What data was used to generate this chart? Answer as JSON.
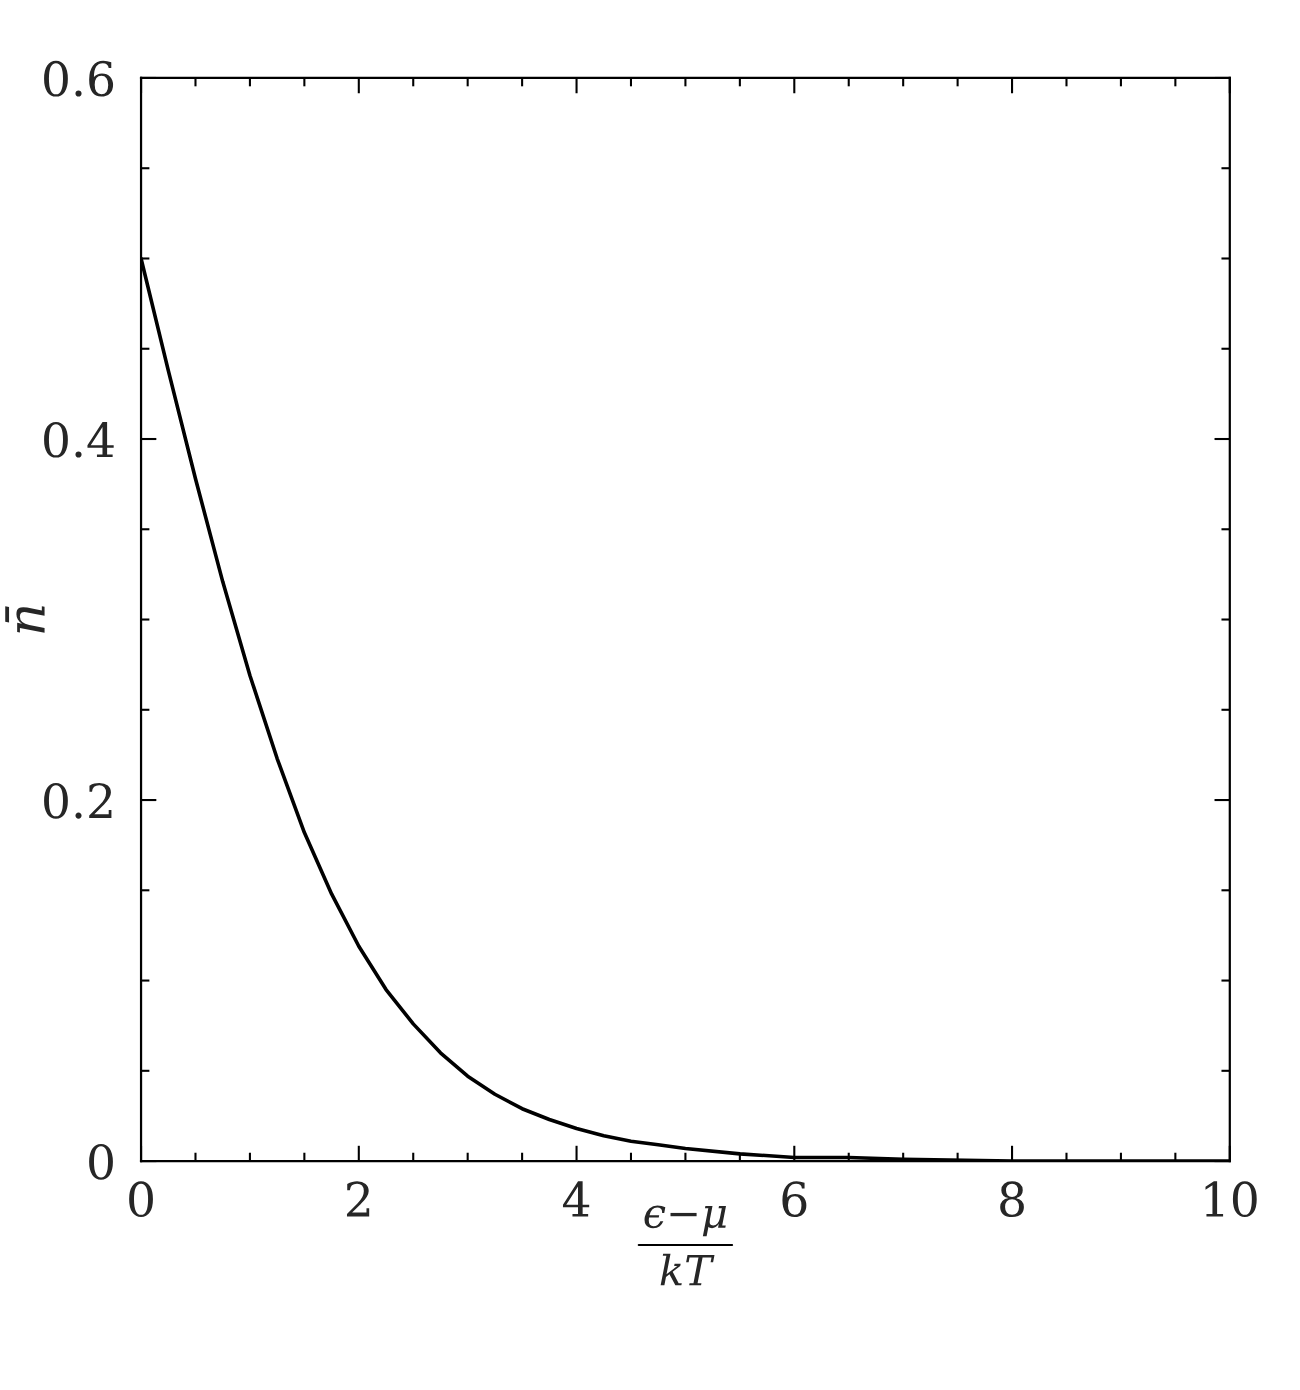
{
  "chart_data": {
    "type": "line",
    "xlabel": "ϵ−μ\nkT",
    "ylabel": "n̄",
    "x": [
      0,
      0.25,
      0.5,
      0.75,
      1,
      1.25,
      1.5,
      1.75,
      2,
      2.25,
      2.5,
      2.75,
      3,
      3.25,
      3.5,
      3.75,
      4,
      4.25,
      4.5,
      4.75,
      5,
      5.5,
      6,
      6.5,
      7,
      8,
      9,
      10
    ],
    "series": [
      {
        "color": "#000000",
        "line_style": "solid",
        "values": [
          0.5,
          0.438,
          0.378,
          0.321,
          0.269,
          0.223,
          0.182,
          0.148,
          0.119,
          0.095,
          0.076,
          0.06,
          0.047,
          0.037,
          0.029,
          0.023,
          0.018,
          0.014,
          0.011,
          0.009,
          0.007,
          0.004,
          0.002,
          0.002,
          0.001,
          0.0,
          0.0,
          0.0
        ]
      }
    ],
    "xlim": [
      0,
      10
    ],
    "ylim": [
      0,
      0.6
    ],
    "xticks": [
      0,
      {
        "value": 0.5,
        "label": null
      },
      {
        "value": 1,
        "label": null
      },
      {
        "value": 1.5,
        "label": null
      },
      2,
      {
        "value": 2.5,
        "label": null
      },
      {
        "value": 3,
        "label": null
      },
      {
        "value": 3.5,
        "label": null
      },
      4,
      {
        "value": 4.5,
        "label": null
      },
      {
        "value": 5,
        "label": null
      },
      {
        "value": 5.5,
        "label": null
      },
      6,
      {
        "value": 6.5,
        "label": null
      },
      {
        "value": 7,
        "label": null
      },
      {
        "value": 7.5,
        "label": null
      },
      8,
      {
        "value": 8.5,
        "label": null
      },
      {
        "value": 9,
        "label": null
      },
      {
        "value": 9.5,
        "label": null
      },
      10
    ],
    "yticks": [
      0,
      {
        "value": 0.05,
        "label": null
      },
      {
        "value": 0.1,
        "label": null
      },
      {
        "value": 0.15,
        "label": null
      },
      0.2,
      {
        "value": 0.25,
        "label": null
      },
      {
        "value": 0.3,
        "label": null
      },
      {
        "value": 0.35,
        "label": null
      },
      0.4,
      {
        "value": 0.45,
        "label": null
      },
      {
        "value": 0.5,
        "label": null
      },
      {
        "value": 0.55,
        "label": null
      },
      0.6
    ],
    "grid": false
  }
}
